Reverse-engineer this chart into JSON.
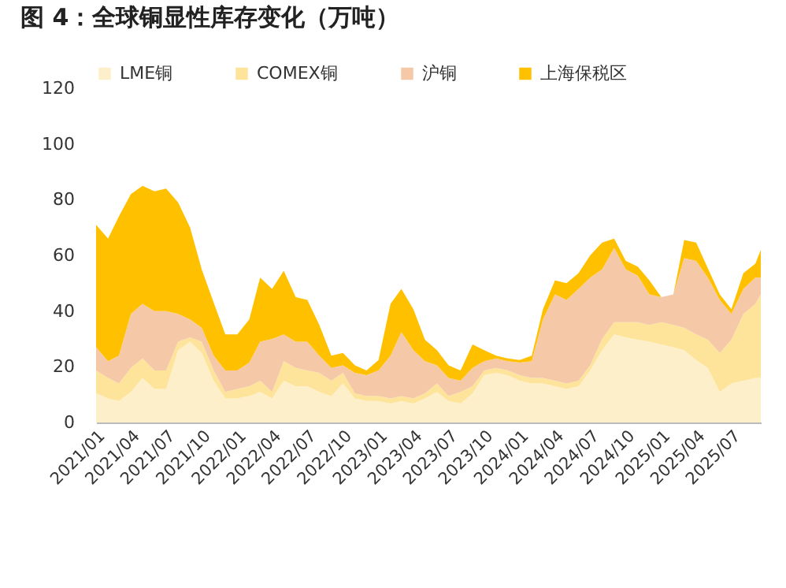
{
  "chart_data": {
    "type": "area",
    "stacked": true,
    "title": "图 4：全球铜显性库存变化（万吨）",
    "x": [
      "2021-01",
      "2021-02",
      "2021-03",
      "2021-04",
      "2021-05",
      "2021-06",
      "2021-07",
      "2021-08",
      "2021-09",
      "2021-10",
      "2021-11",
      "2021-12",
      "2022-01",
      "2022-02",
      "2022-03",
      "2022-04",
      "2022-05",
      "2022-06",
      "2022-07",
      "2022-08",
      "2022-09",
      "2022-10",
      "2022-11",
      "2022-12",
      "2023-01",
      "2023-02",
      "2023-03",
      "2023-04",
      "2023-05",
      "2023-06",
      "2023-07",
      "2023-08",
      "2023-09",
      "2023-10",
      "2023-11",
      "2023-12",
      "2024-01",
      "2024-02",
      "2024-03",
      "2024-04",
      "2024-05",
      "2024-06",
      "2024-07",
      "2024-08",
      "2024-09",
      "2024-10",
      "2024-11",
      "2024-12",
      "2025-01",
      "2025-02",
      "2025-03",
      "2025-04",
      "2025-05",
      "2025-06",
      "2025-07",
      "2025-08",
      "2025-09",
      "2025-09-15"
    ],
    "series": [
      {
        "name": "LME铜",
        "color": "#fdefc9",
        "values": [
          10.5,
          8.6,
          7.7,
          11,
          16,
          12,
          12,
          26,
          29,
          25,
          15,
          8.6,
          8.6,
          9.5,
          11,
          8.6,
          15,
          13,
          13,
          11,
          9.5,
          14,
          8.6,
          7.7,
          7.7,
          6.8,
          7.7,
          6.8,
          8.6,
          11,
          7.7,
          6.8,
          10.5,
          17,
          17.8,
          17,
          15,
          14,
          14,
          13,
          12,
          13,
          18.7,
          26,
          31.6,
          30.6,
          29.7,
          29,
          28,
          27,
          26,
          22.4,
          19.6,
          11,
          14,
          15,
          16,
          16
        ]
      },
      {
        "name": "COMEX铜",
        "color": "#fde49a",
        "values": [
          8.2,
          7.4,
          6.3,
          8.6,
          7,
          6.7,
          6.7,
          3,
          1.6,
          4,
          3.7,
          2.4,
          3.4,
          3.5,
          4,
          2.4,
          7,
          6.6,
          5.7,
          6.8,
          5.5,
          3.8,
          1.9,
          1.8,
          1.8,
          1.8,
          1.8,
          1.8,
          1.9,
          3,
          1.8,
          4.2,
          2.5,
          1.7,
          1.8,
          1.7,
          2,
          2,
          2,
          2,
          2,
          2,
          1.8,
          4,
          4.4,
          5.4,
          6.3,
          6,
          8,
          8,
          8,
          9.2,
          10.1,
          14,
          15.7,
          24,
          26.6,
          30
        ]
      },
      {
        "name": "沪铜",
        "color": "#f5c9a8",
        "values": [
          8.3,
          6,
          10,
          19.4,
          19.6,
          21.3,
          21.3,
          10,
          6.4,
          5,
          5.3,
          7.7,
          6.7,
          8.5,
          14,
          19,
          9.6,
          9.4,
          10.3,
          6.2,
          4.6,
          2.7,
          7.3,
          7.5,
          9.2,
          15.4,
          23,
          17.4,
          11.5,
          6.5,
          6.5,
          4,
          6.6,
          3.3,
          3.4,
          3.3,
          4.5,
          6,
          21,
          31,
          30,
          33,
          31.5,
          25,
          26.7,
          19,
          16.7,
          11,
          9,
          11,
          25,
          26.4,
          22.3,
          19,
          9.3,
          9,
          9.4,
          6
        ]
      },
      {
        "name": "上海保税区",
        "color": "#ffc000",
        "values": [
          44,
          44,
          50,
          43,
          42.4,
          43,
          44,
          40,
          33,
          21,
          19,
          12.9,
          12.9,
          15.5,
          23,
          18,
          22.9,
          16,
          15,
          11,
          4.4,
          4.5,
          2.7,
          1.7,
          3.7,
          18.6,
          15.5,
          14.7,
          7.7,
          5.5,
          4.5,
          3.7,
          8.4,
          4,
          1,
          1,
          0.9,
          2,
          3.7,
          5,
          6,
          5.6,
          8,
          9.6,
          3.3,
          3,
          3.3,
          5,
          0,
          0,
          6.5,
          6.6,
          3.4,
          2,
          1.7,
          5.6,
          5,
          10
        ]
      }
    ],
    "xlim": [
      "2021-01",
      "2025-09-15"
    ],
    "xticks": [
      {
        "value": "2021-01",
        "label": "2021/01"
      },
      {
        "value": "2021-04",
        "label": "2021/04"
      },
      {
        "value": "2021-07",
        "label": "2021/07"
      },
      {
        "value": "2021-10",
        "label": "2021/10"
      },
      {
        "value": "2022-01",
        "label": "2022/01"
      },
      {
        "value": "2022-04",
        "label": "2022/04"
      },
      {
        "value": "2022-07",
        "label": "2022/07"
      },
      {
        "value": "2022-10",
        "label": "2022/10"
      },
      {
        "value": "2023-01",
        "label": "2023/01"
      },
      {
        "value": "2023-04",
        "label": "2023/04"
      },
      {
        "value": "2023-07",
        "label": "2023/07"
      },
      {
        "value": "2023-10",
        "label": "2023/10"
      },
      {
        "value": "2024-01",
        "label": "2024/01"
      },
      {
        "value": "2024-04",
        "label": "2024/04"
      },
      {
        "value": "2024-07",
        "label": "2024/07"
      },
      {
        "value": "2024-10",
        "label": "2024/10"
      },
      {
        "value": "2025-01",
        "label": "2025/01"
      },
      {
        "value": "2025-04",
        "label": "2025/04"
      },
      {
        "value": "2025-07",
        "label": "2025/07"
      }
    ],
    "ylim": [
      0,
      120
    ],
    "yticks": [
      0,
      20,
      40,
      60,
      80,
      100,
      120
    ],
    "legend": "top"
  }
}
